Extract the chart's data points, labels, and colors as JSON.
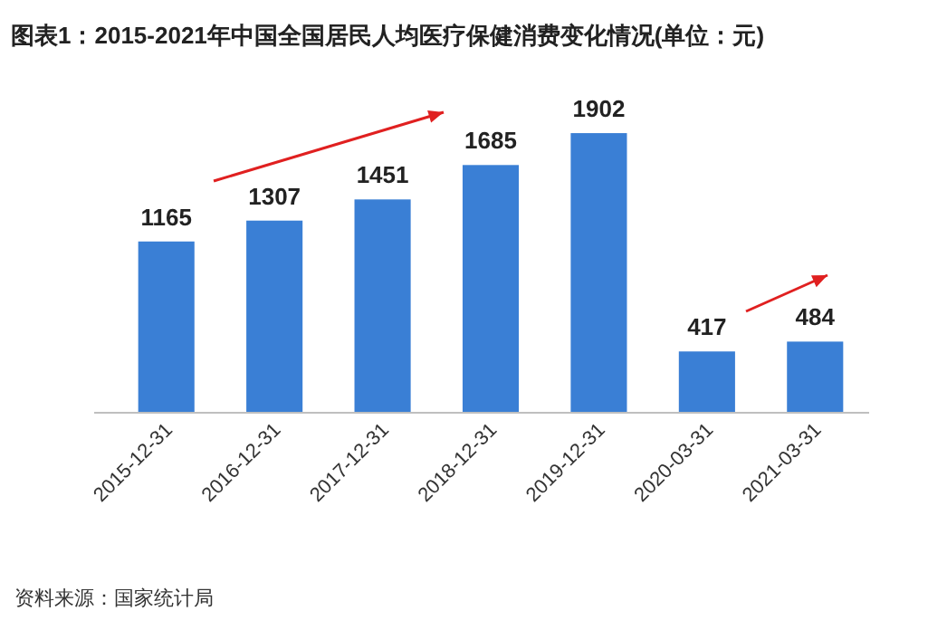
{
  "chart_data": {
    "type": "bar",
    "title": "图表1：2015-2021年中国全国居民人均医疗保健消费变化情况(单位：元)",
    "categories": [
      "2015-12-31",
      "2016-12-31",
      "2017-12-31",
      "2018-12-31",
      "2019-12-31",
      "2020-03-31",
      "2021-03-31"
    ],
    "values": [
      1165,
      1307,
      1451,
      1685,
      1902,
      417,
      484
    ],
    "color": "#3a7fd5",
    "data_labels": true,
    "annotations": [
      "资料来源：国家统计局"
    ]
  }
}
